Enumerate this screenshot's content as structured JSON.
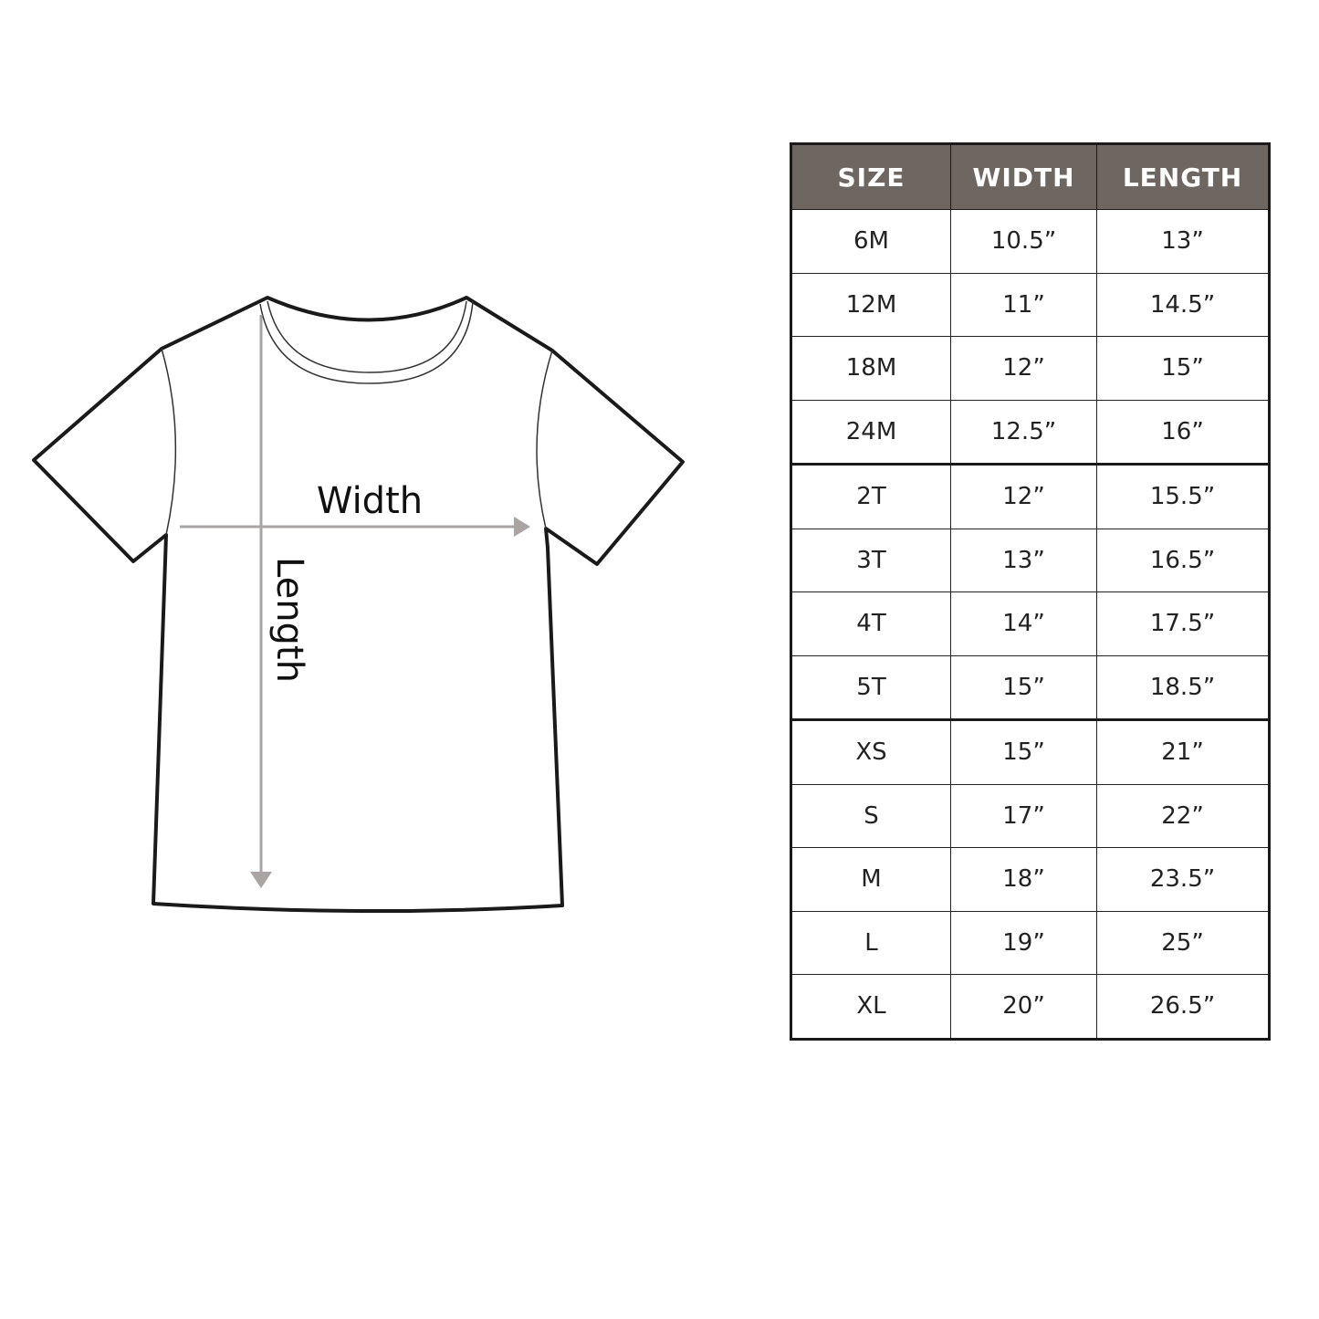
{
  "diagram": {
    "width_label": "Width",
    "length_label": "Length",
    "arrow_color": "#aaa5a2"
  },
  "table": {
    "header_color": "#6e6661",
    "headers": [
      "SIZE",
      "WIDTH",
      "LENGTH"
    ],
    "rows": [
      {
        "size": "6M",
        "width": "10.5”",
        "length": "13”"
      },
      {
        "size": "12M",
        "width": "11”",
        "length": "14.5”"
      },
      {
        "size": "18M",
        "width": "12”",
        "length": "15”"
      },
      {
        "size": "24M",
        "width": "12.5”",
        "length": "16”"
      },
      {
        "size": "2T",
        "width": "12”",
        "length": "15.5”"
      },
      {
        "size": "3T",
        "width": "13”",
        "length": "16.5”"
      },
      {
        "size": "4T",
        "width": "14”",
        "length": "17.5”"
      },
      {
        "size": "5T",
        "width": "15”",
        "length": "18.5”"
      },
      {
        "size": "XS",
        "width": "15”",
        "length": "21”"
      },
      {
        "size": "S",
        "width": "17”",
        "length": "22”"
      },
      {
        "size": "M",
        "width": "18”",
        "length": "23.5”"
      },
      {
        "size": "L",
        "width": "19”",
        "length": "25”"
      },
      {
        "size": "XL",
        "width": "20”",
        "length": "26.5”"
      }
    ]
  }
}
